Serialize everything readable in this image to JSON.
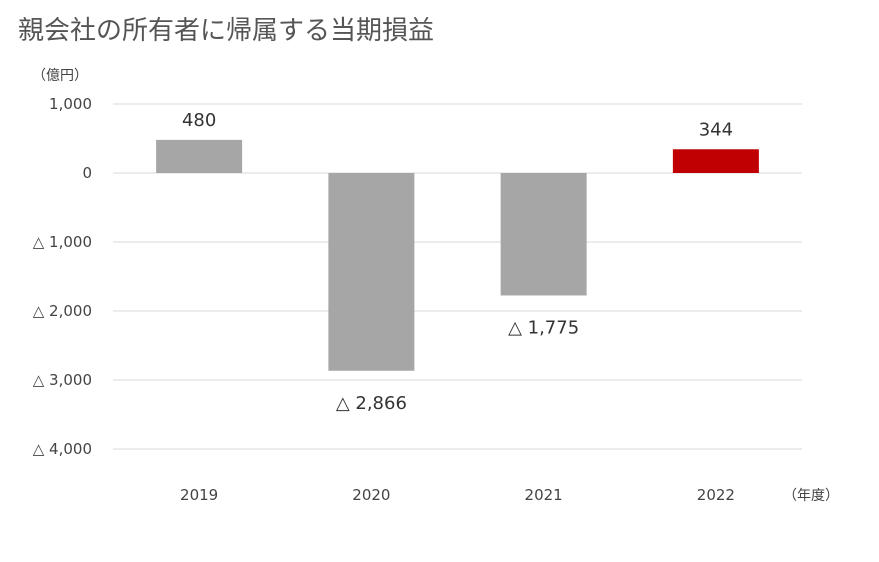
{
  "title": "親会社の所有者に帰属する当期損益",
  "chart_data": {
    "type": "bar",
    "title": "親会社の所有者に帰属する当期損益",
    "y_unit_label": "（億円）",
    "x_unit_label": "（年度）",
    "categories": [
      "2019",
      "2020",
      "2021",
      "2022"
    ],
    "values": [
      480,
      -2866,
      -1775,
      344
    ],
    "data_labels": [
      "480",
      "△ 2,866",
      "△ 1,775",
      "344"
    ],
    "bar_colors": [
      "#a6a6a6",
      "#a6a6a6",
      "#a6a6a6",
      "#c00000"
    ],
    "ylim": [
      -4000,
      1000
    ],
    "y_ticks": [
      1000,
      0,
      -1000,
      -2000,
      -3000,
      -4000
    ],
    "y_tick_labels": [
      "1,000",
      "0",
      "△ 1,000",
      "△ 2,000",
      "△ 3,000",
      "△ 4,000"
    ],
    "grid": true,
    "legend": "none"
  }
}
